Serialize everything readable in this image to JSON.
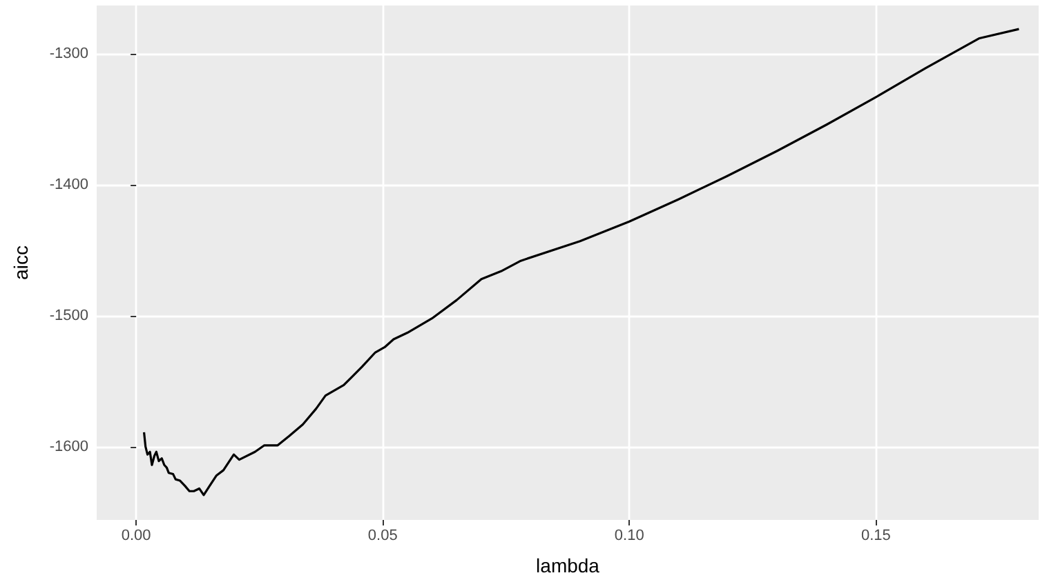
{
  "chart_data": {
    "type": "line",
    "xlabel": "lambda",
    "ylabel": "aicc",
    "xlim": [
      -0.008,
      0.183
    ],
    "ylim": [
      -1656,
      -1263
    ],
    "xticks": [
      {
        "value": 0,
        "label": "0.00"
      },
      0.05,
      {
        "value": 0.1,
        "label": "0.10"
      },
      0.15
    ],
    "yticks": [
      -1600,
      -1500,
      -1400,
      -1300
    ],
    "grid": true,
    "marker": "none",
    "line_style": "solid",
    "series": [
      {
        "color": "#000000",
        "x": [
          0.0016,
          0.0019,
          0.0023,
          0.0028,
          0.0032,
          0.0037,
          0.0041,
          0.0046,
          0.0052,
          0.0057,
          0.0062,
          0.0066,
          0.0075,
          0.008,
          0.0089,
          0.0099,
          0.0108,
          0.0117,
          0.0128,
          0.0137,
          0.0149,
          0.0163,
          0.0177,
          0.0198,
          0.0209,
          0.0241,
          0.026,
          0.0287,
          0.031,
          0.0338,
          0.0365,
          0.0384,
          0.0421,
          0.0458,
          0.0485,
          0.0504,
          0.0522,
          0.055,
          0.06,
          0.065,
          0.07,
          0.074,
          0.078,
          0.09,
          0.1,
          0.11,
          0.12,
          0.13,
          0.14,
          0.15,
          0.16,
          0.171,
          0.179
        ],
        "values": [
          -1589,
          -1600,
          -1606,
          -1604,
          -1614,
          -1607,
          -1604,
          -1611,
          -1609,
          -1614,
          -1616,
          -1620,
          -1621,
          -1625,
          -1626,
          -1630,
          -1634,
          -1634,
          -1632,
          -1637,
          -1630,
          -1622,
          -1618,
          -1606,
          -1610,
          -1604,
          -1599,
          -1599,
          -1592,
          -1583,
          -1571,
          -1561,
          -1553,
          -1539,
          -1528,
          -1524,
          -1518,
          -1513,
          -1502,
          -1488,
          -1472,
          -1466,
          -1458,
          -1443,
          -1428,
          -1411,
          -1393,
          -1374,
          -1354,
          -1333,
          -1311,
          -1288,
          -1281
        ]
      }
    ]
  }
}
